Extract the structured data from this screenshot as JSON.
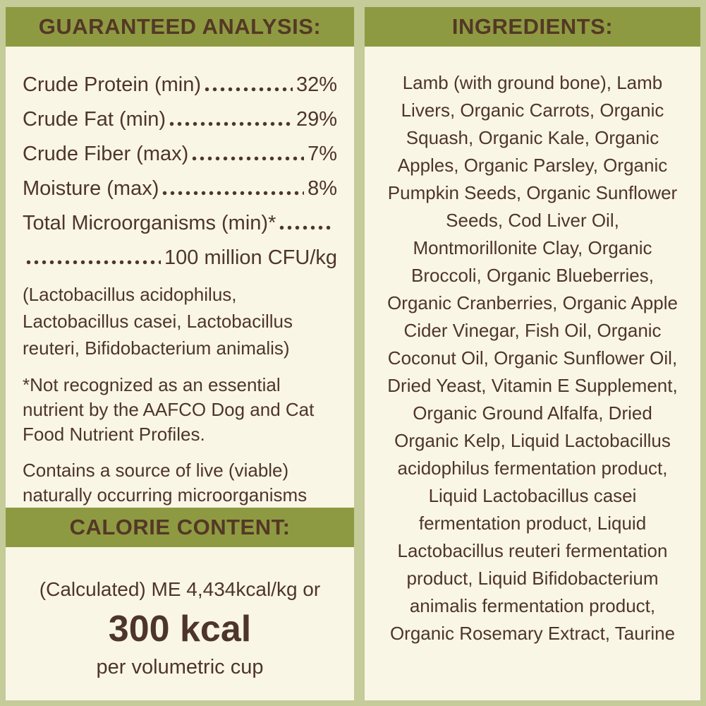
{
  "colors": {
    "background_sage": "#c5cb99",
    "header_olive": "#8e9a41",
    "panel_cream": "#faf6e6",
    "text_brown": "#4e352a"
  },
  "guaranteed_analysis": {
    "header": "GUARANTEED ANALYSIS:",
    "rows": [
      {
        "label": "Crude Protein (min)",
        "value": "32%"
      },
      {
        "label": "Crude Fat (min)",
        "value": "29%"
      },
      {
        "label": "Crude Fiber (max)",
        "value": "7%"
      },
      {
        "label": "Moisture (max)",
        "value": "8%"
      },
      {
        "label": "Total Microorganisms (min)*",
        "value": ""
      },
      {
        "label": "",
        "value": "100 million CFU/kg"
      }
    ],
    "probiotics_note": [
      "(Lactobacillus acidophilus,",
      "Lactobacillus casei, Lactobacillus",
      "reuteri, Bifidobacterium animalis)"
    ],
    "aafco_note": [
      "*Not recognized as an essential",
      "nutrient by the AAFCO Dog and Cat",
      "Food Nutrient Profiles."
    ],
    "live_note": [
      "Contains a source of live (viable)",
      "naturally occurring microorganisms"
    ]
  },
  "calorie_content": {
    "header": "CALORIE CONTENT:",
    "line1": "(Calculated) ME 4,434kcal/kg or",
    "value": "300 kcal",
    "line2": "per volumetric cup"
  },
  "ingredients": {
    "header": "INGREDIENTS:",
    "lines": [
      "Lamb (with ground bone), Lamb",
      "Livers, Organic Carrots, Organic",
      "Squash, Organic Kale, Organic",
      "Apples, Organic Parsley, Organic",
      "Pumpkin Seeds, Organic Sunflower",
      "Seeds, Cod Liver Oil,",
      "Montmorillonite Clay, Organic",
      "Broccoli, Organic Blueberries,",
      "Organic Cranberries, Organic Apple",
      "Cider Vinegar, Fish Oil, Organic",
      "Coconut Oil, Organic Sunflower Oil,",
      "Dried Yeast, Vitamin E Supplement,",
      "Organic Ground Alfalfa, Dried",
      "Organic Kelp, Liquid Lactobacillus",
      "acidophilus fermentation product,",
      "Liquid Lactobacillus casei",
      "fermentation product, Liquid",
      "Lactobacillus reuteri fermentation",
      "product, Liquid Bifidobacterium",
      "animalis fermentation product,",
      "Organic Rosemary Extract, Taurine"
    ]
  }
}
